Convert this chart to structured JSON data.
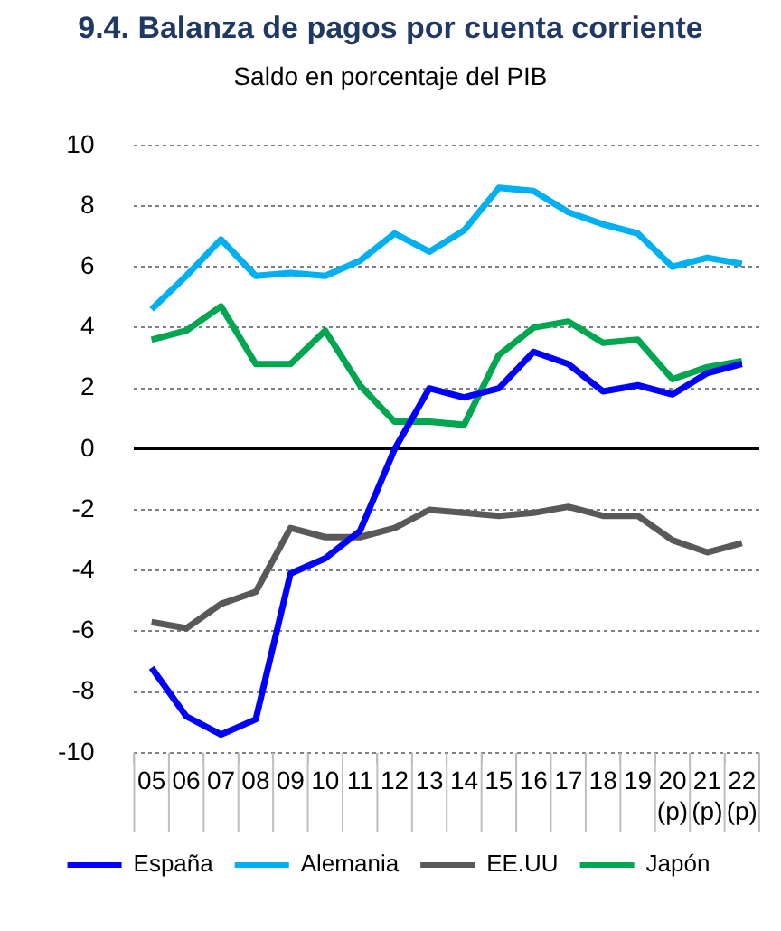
{
  "chart_data": {
    "type": "line",
    "title": "9.4. Balanza de pagos por cuenta corriente",
    "subtitle": "Saldo en porcentaje del PIB",
    "categories": [
      "05",
      "06",
      "07",
      "08",
      "09",
      "10",
      "11",
      "12",
      "13",
      "14",
      "15",
      "16",
      "17",
      "18",
      "19",
      "20 (p)",
      "21 (p)",
      "22 (p)"
    ],
    "series": [
      {
        "name": "España",
        "color": "#0000ff",
        "values": [
          -7.2,
          -8.8,
          -9.4,
          -8.9,
          -4.1,
          -3.6,
          -2.7,
          0.0,
          2.0,
          1.7,
          2.0,
          3.2,
          2.8,
          1.9,
          2.1,
          1.8,
          2.5,
          2.8
        ]
      },
      {
        "name": "Alemania",
        "color": "#00b0f0",
        "values": [
          4.6,
          5.7,
          6.9,
          5.7,
          5.8,
          5.7,
          6.2,
          7.1,
          6.5,
          7.2,
          8.6,
          8.5,
          7.8,
          7.4,
          7.1,
          6.0,
          6.3,
          6.1
        ]
      },
      {
        "name": "EE.UU",
        "color": "#595959",
        "values": [
          -5.7,
          -5.9,
          -5.1,
          -4.7,
          -2.6,
          -2.9,
          -2.9,
          -2.6,
          -2.0,
          -2.1,
          -2.2,
          -2.1,
          -1.9,
          -2.2,
          -2.2,
          -3.0,
          -3.4,
          -3.1
        ]
      },
      {
        "name": "Japón",
        "color": "#00a650",
        "values": [
          3.6,
          3.9,
          4.7,
          2.8,
          2.8,
          3.9,
          2.1,
          0.9,
          0.9,
          0.8,
          3.1,
          4.0,
          4.2,
          3.5,
          3.6,
          2.3,
          2.7,
          2.9
        ]
      }
    ],
    "ylim": [
      -10,
      10
    ],
    "yticks": [
      -10,
      -8,
      -6,
      -4,
      -2,
      0,
      2,
      4,
      6,
      8,
      10
    ],
    "grid": "y",
    "legend": "bottom",
    "marker": "none",
    "line_style": "solid"
  }
}
